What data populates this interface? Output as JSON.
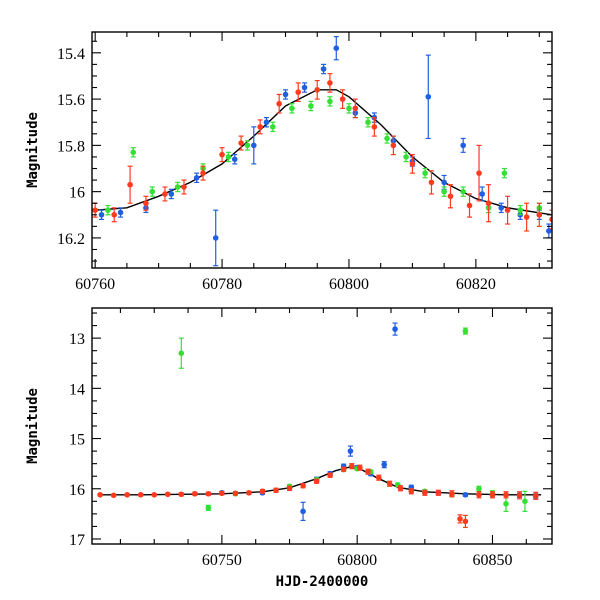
{
  "colors": {
    "blue": "#1f5fe0",
    "green": "#33e033",
    "red": "#ff3b1f",
    "model": "#000000"
  },
  "chart_data": [
    {
      "type": "scatter",
      "ylabel": "Magnitude",
      "xlabel": "",
      "xlim": [
        60759.5,
        60832
      ],
      "ylim": [
        16.33,
        15.31
      ],
      "y_inverted": true,
      "xticks": [
        60760,
        60780,
        60800,
        60820
      ],
      "xtick_labels": [
        "60760",
        "60780",
        "60800",
        "60820"
      ],
      "yticks": [
        15.4,
        15.6,
        15.8,
        16.0,
        16.2
      ],
      "ytick_labels": [
        "15.4",
        "15.6",
        "15.8",
        "16",
        "16.2"
      ],
      "model_curve": {
        "color": "model",
        "x": [
          60760,
          60765,
          60770,
          60775,
          60780,
          60785,
          60790,
          60795,
          60798,
          60800,
          60805,
          60810,
          60815,
          60820,
          60825,
          60832
        ],
        "y": [
          16.08,
          16.07,
          16.02,
          15.96,
          15.88,
          15.76,
          15.63,
          15.56,
          15.56,
          15.59,
          15.71,
          15.85,
          15.96,
          16.03,
          16.07,
          16.1
        ]
      },
      "series": [
        {
          "color": "blue",
          "x": [
            60761,
            60764,
            60768,
            60772,
            60776,
            60779,
            60782,
            60785,
            60787,
            60790,
            60793,
            60796,
            60798,
            60801,
            60804,
            60807,
            60810,
            60812.5,
            60815,
            60818,
            60821,
            60824,
            60827,
            60830,
            60831.5
          ],
          "y": [
            16.1,
            16.09,
            16.07,
            16.01,
            15.94,
            16.2,
            15.86,
            15.8,
            15.7,
            15.58,
            15.55,
            15.47,
            15.38,
            15.66,
            15.68,
            15.78,
            15.87,
            15.59,
            15.96,
            15.8,
            16.01,
            16.07,
            16.1,
            16.1,
            16.17
          ],
          "yerr": [
            0.02,
            0.02,
            0.02,
            0.02,
            0.02,
            0.12,
            0.02,
            0.08,
            0.02,
            0.02,
            0.02,
            0.02,
            0.05,
            0.02,
            0.02,
            0.02,
            0.02,
            0.18,
            0.03,
            0.03,
            0.03,
            0.02,
            0.02,
            0.02,
            0.03
          ]
        },
        {
          "color": "green",
          "x": [
            60762,
            60766,
            60769,
            60773,
            60777,
            60781,
            60784,
            60788,
            60791,
            60794,
            60797,
            60800,
            60803,
            60806,
            60809,
            60812,
            60815,
            60818,
            60822,
            60824.5,
            60827,
            60830
          ],
          "y": [
            16.08,
            15.83,
            16.0,
            15.98,
            15.9,
            15.85,
            15.8,
            15.72,
            15.64,
            15.63,
            15.61,
            15.64,
            15.7,
            15.77,
            15.85,
            15.92,
            16.0,
            16.0,
            16.07,
            15.92,
            16.08,
            16.07
          ],
          "yerr": [
            0.02,
            0.02,
            0.02,
            0.02,
            0.02,
            0.02,
            0.02,
            0.02,
            0.02,
            0.02,
            0.02,
            0.02,
            0.02,
            0.02,
            0.02,
            0.02,
            0.02,
            0.02,
            0.02,
            0.02,
            0.02,
            0.02
          ]
        },
        {
          "color": "red",
          "x": [
            60760,
            60763,
            60765.5,
            60768,
            60771,
            60774,
            60777,
            60780,
            60783,
            60786,
            60789,
            60792,
            60795,
            60797,
            60799,
            60801,
            60804,
            60807,
            60810,
            60813,
            60816,
            60819,
            60820.5,
            60822,
            60825,
            60828,
            60830,
            60832
          ],
          "y": [
            16.08,
            16.1,
            15.97,
            16.05,
            16.01,
            15.98,
            15.92,
            15.84,
            15.79,
            15.72,
            15.62,
            15.57,
            15.56,
            15.53,
            15.6,
            15.64,
            15.72,
            15.8,
            15.88,
            15.96,
            16.02,
            16.06,
            15.92,
            16.05,
            16.08,
            16.11,
            16.1,
            16.12
          ],
          "yerr": [
            0.03,
            0.03,
            0.08,
            0.03,
            0.03,
            0.03,
            0.03,
            0.03,
            0.03,
            0.03,
            0.04,
            0.04,
            0.04,
            0.04,
            0.04,
            0.04,
            0.04,
            0.04,
            0.04,
            0.05,
            0.05,
            0.05,
            0.12,
            0.08,
            0.06,
            0.06,
            0.05,
            0.04
          ]
        }
      ]
    },
    {
      "type": "scatter",
      "ylabel": "Magnitude",
      "xlabel": "HJD-2400000",
      "xlim": [
        60702,
        60872
      ],
      "ylim": [
        17.1,
        12.4
      ],
      "y_inverted": true,
      "xticks": [
        60750,
        60800,
        60850
      ],
      "xtick_labels": [
        "60750",
        "60800",
        "60850"
      ],
      "yticks": [
        13,
        14,
        15,
        16,
        17
      ],
      "ytick_labels": [
        "13",
        "14",
        "15",
        "16",
        "17"
      ],
      "model_curve": {
        "color": "model",
        "x": [
          60705,
          60720,
          60735,
          60750,
          60765,
          60775,
          60785,
          60792,
          60797,
          60802,
          60808,
          60815,
          60825,
          60840,
          60855,
          60868
        ],
        "y": [
          16.12,
          16.12,
          16.11,
          16.1,
          16.06,
          15.98,
          15.8,
          15.64,
          15.57,
          15.63,
          15.8,
          15.97,
          16.06,
          16.1,
          16.12,
          16.12
        ]
      },
      "series": [
        {
          "color": "blue",
          "x": [
            60750,
            60765,
            60775,
            60780,
            60785,
            60790,
            60795,
            60797.5,
            60800,
            60805,
            60810,
            60814,
            60820,
            60830,
            60840,
            60850,
            60860,
            60866
          ],
          "y": [
            16.08,
            16.08,
            15.98,
            16.45,
            15.82,
            15.7,
            15.55,
            15.25,
            15.58,
            15.7,
            15.52,
            12.82,
            15.97,
            16.08,
            16.12,
            16.12,
            16.13,
            16.15
          ],
          "yerr": [
            0.03,
            0.03,
            0.03,
            0.18,
            0.05,
            0.04,
            0.04,
            0.1,
            0.04,
            0.04,
            0.06,
            0.12,
            0.04,
            0.03,
            0.03,
            0.03,
            0.04,
            0.05
          ]
        },
        {
          "color": "green",
          "x": [
            60735,
            60745,
            60755,
            60765,
            60775,
            60785,
            60795,
            60800,
            60805,
            60815,
            60825,
            60835,
            60840,
            60845,
            60850,
            60855,
            60862
          ],
          "y": [
            13.3,
            16.38,
            16.1,
            16.05,
            15.95,
            15.82,
            15.62,
            15.6,
            15.66,
            15.92,
            16.05,
            16.12,
            12.86,
            16.0,
            16.1,
            16.3,
            16.25
          ],
          "yerr": [
            0.3,
            0.05,
            0.03,
            0.03,
            0.03,
            0.03,
            0.03,
            0.03,
            0.03,
            0.03,
            0.03,
            0.04,
            0.06,
            0.05,
            0.06,
            0.15,
            0.2
          ]
        },
        {
          "color": "red",
          "x": [
            60705,
            60710,
            60715,
            60720,
            60725,
            60730,
            60735,
            60740,
            60745,
            60750,
            60755,
            60760,
            60765,
            60770,
            60775,
            60780,
            60785,
            60790,
            60795,
            60798,
            60801,
            60804,
            60808,
            60812,
            60816,
            60820,
            60825,
            60830,
            60835,
            60838,
            60840,
            60845,
            60850,
            60855,
            60860,
            60866
          ],
          "y": [
            16.12,
            16.13,
            16.12,
            16.12,
            16.12,
            16.11,
            16.11,
            16.1,
            16.1,
            16.09,
            16.09,
            16.08,
            16.05,
            16.03,
            15.99,
            15.94,
            15.85,
            15.73,
            15.61,
            15.55,
            15.58,
            15.66,
            15.78,
            15.9,
            15.99,
            16.05,
            16.08,
            16.08,
            16.1,
            16.6,
            16.65,
            16.12,
            16.12,
            16.12,
            16.13,
            16.14
          ],
          "yerr": [
            0.02,
            0.02,
            0.02,
            0.02,
            0.02,
            0.02,
            0.03,
            0.03,
            0.03,
            0.03,
            0.03,
            0.03,
            0.03,
            0.04,
            0.04,
            0.04,
            0.04,
            0.04,
            0.04,
            0.05,
            0.05,
            0.05,
            0.05,
            0.05,
            0.05,
            0.05,
            0.05,
            0.05,
            0.06,
            0.08,
            0.12,
            0.06,
            0.06,
            0.06,
            0.07,
            0.07
          ]
        }
      ]
    }
  ]
}
